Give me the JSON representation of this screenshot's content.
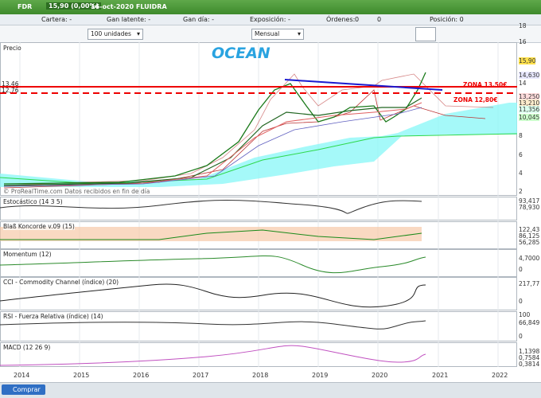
{
  "header": {
    "symbol": "FDR",
    "quote": "15,90 (0,00%)",
    "date_name": "16-oct-2020 FLUIDRA"
  },
  "info": {
    "cartera": "Cartera: -",
    "gan_latente": "Gan latente: -",
    "gan_dia": "Gan día: -",
    "exposicion": "Exposición: -",
    "ordenes": "Órdenes:",
    "ordenes_a": "0",
    "ordenes_b": "0",
    "posicion": "Posición: 0"
  },
  "controls": {
    "quantity": "100 unidades",
    "period": "Mensual"
  },
  "price_panel": {
    "title": "Precio",
    "annotation": "OCEAN",
    "zone_high": "ZONA 13,50€",
    "zone_low": "ZONA 12,80€",
    "left_labels": [
      "13,46",
      "12,76"
    ],
    "watermark": "© ProRealTime.com Datos recibidos en fin de día",
    "axis_labels": [
      "18",
      "16",
      "15,90",
      "14,630",
      "14",
      "13,250",
      "13,210",
      "11,356",
      "10,045",
      "8",
      "6",
      "4",
      "2"
    ]
  },
  "indicator_panels": [
    {
      "title": "Estocástico (14 3 5)",
      "axis_labels": [
        "93,417",
        "78,930"
      ]
    },
    {
      "title": "Blaß Koncorde v.09 (15)",
      "axis_labels": [
        "122,43",
        "86,125",
        "56,285"
      ]
    },
    {
      "title": "Momentum (12)",
      "axis_labels": [
        "4,7000",
        "0"
      ]
    },
    {
      "title": "CCI - Commodity Channel (índice) (20)",
      "axis_labels": [
        "217,77",
        "0"
      ]
    },
    {
      "title": "RSI - Fuerza Relativa (índice) (14)",
      "axis_labels": [
        "100",
        "66,849",
        "0"
      ]
    },
    {
      "title": "MACD (12 26 9)",
      "axis_labels": [
        "1,1398",
        "0,7584",
        "0,3814"
      ]
    }
  ],
  "x_axis": [
    "2014",
    "2015",
    "2016",
    "2017",
    "2018",
    "2019",
    "2020",
    "2021",
    "2022"
  ],
  "footer": {
    "buy": "Comprar"
  }
}
